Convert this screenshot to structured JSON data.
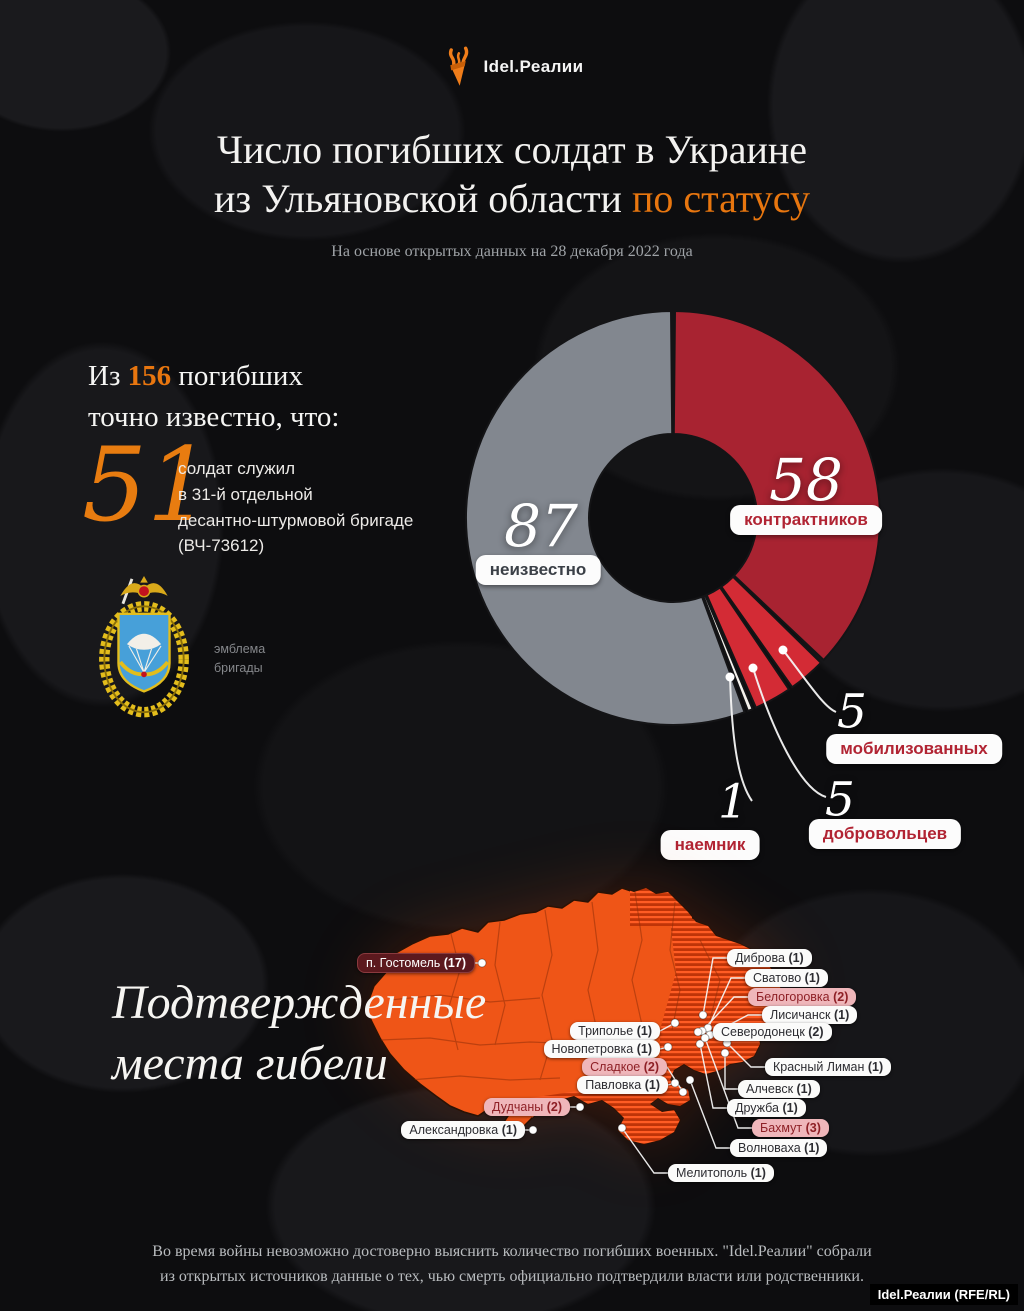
{
  "header": {
    "logo_text": "Idel.Реалии"
  },
  "title": {
    "line1": "Число погибших солдат в Украине",
    "line2_white": "из Ульяновской области ",
    "line2_orange": "по статусу",
    "subtitle": "На основе открытых данных на 28 декабря 2022 года"
  },
  "stats": {
    "intro_prefix": "Из ",
    "intro_number": "156",
    "intro_suffix": " погибших",
    "intro_line2": "точно известно, что:",
    "big_number": "51",
    "big_desc": "солдат служил\nв 31-й отдельной\nдесантно-штурмовой бригаде\n(ВЧ-73612)",
    "emblem_caption": "эмблема\nбригады"
  },
  "chart_data": {
    "type": "donut",
    "title": "Число погибших солдат в Украине из Ульяновской области по статусу",
    "total": 156,
    "start_angle_deg": 0,
    "direction": "clockwise",
    "segments": [
      {
        "label": "контрактников",
        "value": 58,
        "color": "#a82331"
      },
      {
        "label": "мобилизованных",
        "value": 5,
        "color": "#d32b35"
      },
      {
        "label": "добровольцев",
        "value": 5,
        "color": "#d32b35"
      },
      {
        "label": "наемник",
        "value": 1,
        "color": "#f4f1ec"
      },
      {
        "label": "неизвестно",
        "value": 87,
        "color": "#82878f"
      }
    ]
  },
  "map": {
    "section_title_line1": "Подтвержденные",
    "section_title_line2": "места гибели",
    "locations": [
      {
        "label": "п. Гостомель",
        "count": 17,
        "variant": "dark",
        "dot": [
          152,
          83
        ],
        "pill": [
          145,
          83
        ],
        "anchor": "right"
      },
      {
        "label": "Диброва",
        "count": 1,
        "variant": "white",
        "dot": [
          373,
          135
        ],
        "pill": [
          397,
          78
        ],
        "anchor": "left"
      },
      {
        "label": "Сватово",
        "count": 1,
        "variant": "white",
        "dot": [
          378,
          148
        ],
        "pill": [
          415,
          98
        ],
        "anchor": "left"
      },
      {
        "label": "Белогоровка",
        "count": 2,
        "variant": "pink",
        "dot": [
          372,
          151
        ],
        "pill": [
          418,
          117
        ],
        "anchor": "left"
      },
      {
        "label": "Лисичанск",
        "count": 1,
        "variant": "white",
        "dot": [
          380,
          155
        ],
        "pill": [
          432,
          135
        ],
        "anchor": "left"
      },
      {
        "label": "Северодонецк",
        "count": 2,
        "variant": "white",
        "dot": [
          368,
          152
        ],
        "pill": [
          383,
          152
        ],
        "anchor": "left"
      },
      {
        "label": "Красный Лиман",
        "count": 1,
        "variant": "white",
        "dot": [
          397,
          163
        ],
        "pill": [
          435,
          187
        ],
        "anchor": "left"
      },
      {
        "label": "Алчевск",
        "count": 1,
        "variant": "white",
        "dot": [
          395,
          173
        ],
        "pill": [
          408,
          209
        ],
        "anchor": "left"
      },
      {
        "label": "Дружба",
        "count": 1,
        "variant": "white",
        "dot": [
          370,
          164
        ],
        "pill": [
          397,
          228
        ],
        "anchor": "left"
      },
      {
        "label": "Бахмут",
        "count": 3,
        "variant": "pink",
        "dot": [
          375,
          158
        ],
        "pill": [
          422,
          248
        ],
        "anchor": "left"
      },
      {
        "label": "Волноваха",
        "count": 1,
        "variant": "white",
        "dot": [
          360,
          200
        ],
        "pill": [
          400,
          268
        ],
        "anchor": "left"
      },
      {
        "label": "Мелитополь",
        "count": 1,
        "variant": "white",
        "dot": [
          292,
          248
        ],
        "pill": [
          338,
          293
        ],
        "anchor": "left"
      },
      {
        "label": "Триполье",
        "count": 1,
        "variant": "white",
        "dot": [
          345,
          143
        ],
        "pill": [
          330,
          151
        ],
        "anchor": "right"
      },
      {
        "label": "Новопетровка",
        "count": 1,
        "variant": "white",
        "dot": [
          338,
          167
        ],
        "pill": [
          330,
          169
        ],
        "anchor": "right"
      },
      {
        "label": "Сладкое",
        "count": 2,
        "variant": "pink",
        "dot": [
          353,
          212
        ],
        "pill": [
          337,
          187
        ],
        "anchor": "right"
      },
      {
        "label": "Павловка",
        "count": 1,
        "variant": "white",
        "dot": [
          345,
          203
        ],
        "pill": [
          338,
          205
        ],
        "anchor": "right"
      },
      {
        "label": "Дудчаны",
        "count": 2,
        "variant": "pink",
        "dot": [
          250,
          227
        ],
        "pill": [
          240,
          227
        ],
        "anchor": "right"
      },
      {
        "label": "Александровка",
        "count": 1,
        "variant": "white",
        "dot": [
          203,
          250
        ],
        "pill": [
          195,
          250
        ],
        "anchor": "right"
      }
    ]
  },
  "footer": {
    "line1": "Во время войны невозможно достоверно выяснить количество погибших военных. \"Idel.Реалии\" собрали",
    "line2": "из открытых источников данные о тех, чью смерть официально подтвердили власти или родственники.",
    "credit": "Idel.Реалии (RFE/RL)"
  }
}
